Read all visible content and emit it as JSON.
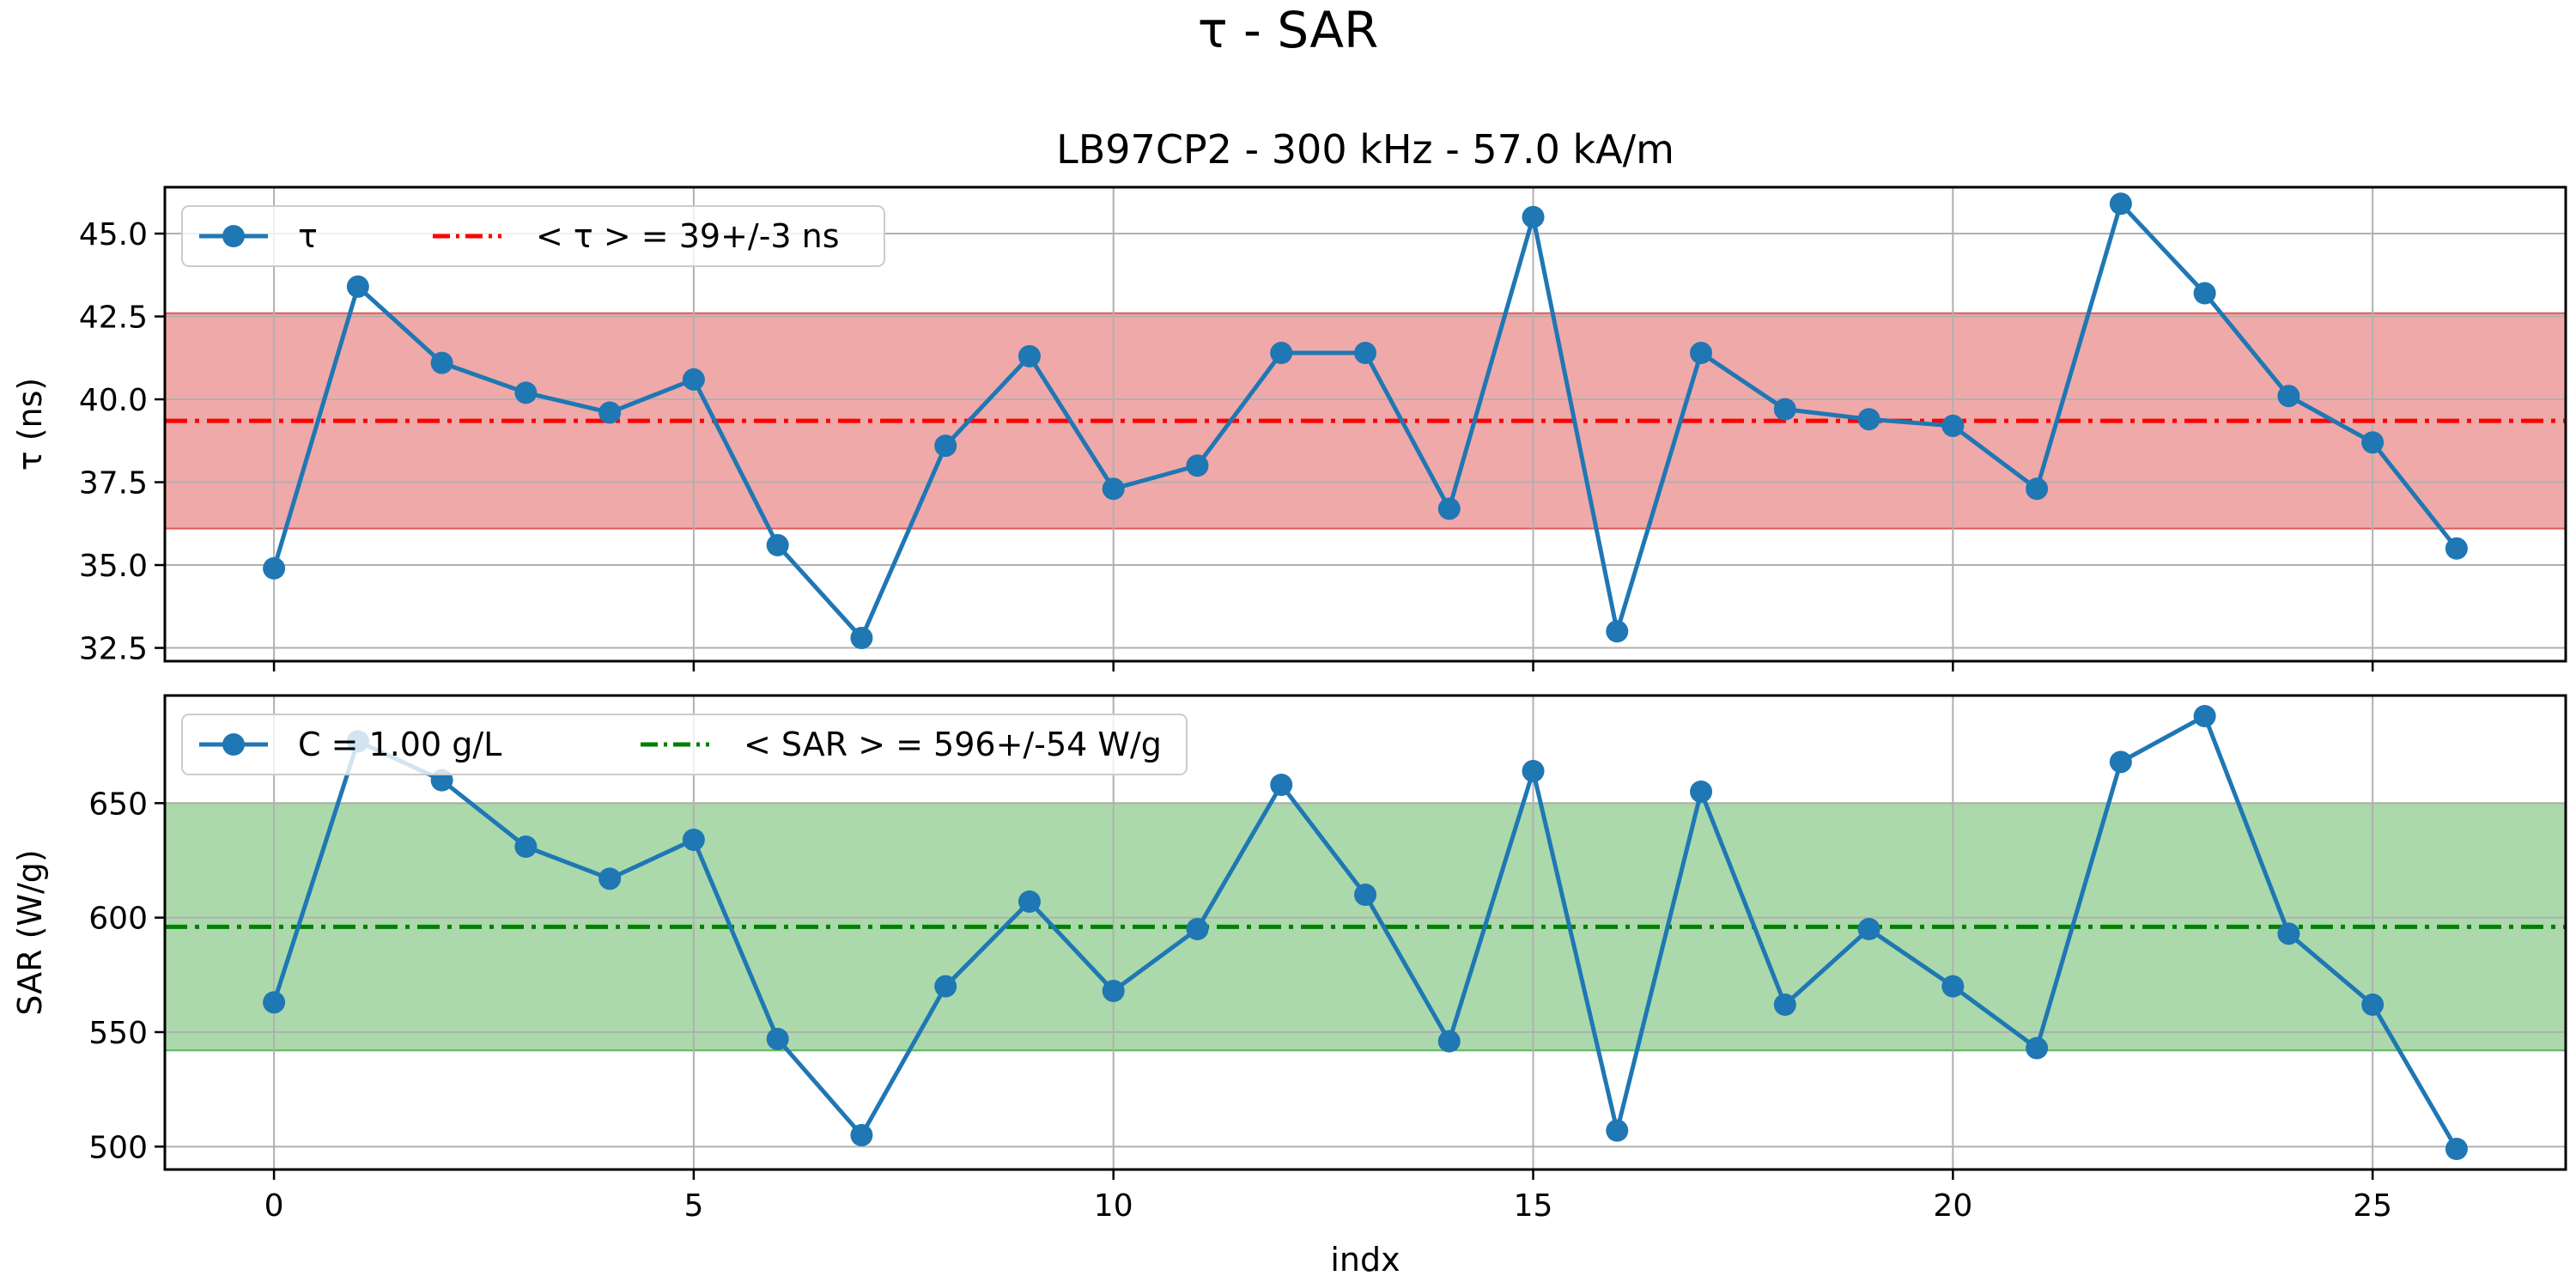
{
  "figure": {
    "suptitle": "τ - SAR"
  },
  "chart_data": [
    {
      "type": "line",
      "title": "LB97CP2 - 300 kHz - 57.0 kA/m",
      "xlabel": "",
      "ylabel": "τ (ns)",
      "xlim": [
        -1.3,
        27.3
      ],
      "ylim": [
        32.1,
        46.4
      ],
      "xticks": [
        0,
        5,
        10,
        15,
        20,
        25
      ],
      "yticks": [
        32.5,
        35.0,
        37.5,
        40.0,
        42.5,
        45.0
      ],
      "ytick_labels": [
        "32.5",
        "35.0",
        "37.5",
        "40.0",
        "42.5",
        "45.0"
      ],
      "grid": true,
      "legend_position": "top-left",
      "series": [
        {
          "name": "τ",
          "color": "#1f77b4",
          "marker": "circle",
          "x": [
            0,
            1,
            2,
            3,
            4,
            5,
            6,
            7,
            8,
            9,
            10,
            11,
            12,
            13,
            14,
            15,
            16,
            17,
            18,
            19,
            20,
            21,
            22,
            23,
            24,
            25,
            26
          ],
          "values": [
            34.9,
            43.4,
            41.1,
            40.2,
            39.6,
            40.6,
            35.6,
            32.8,
            38.6,
            41.3,
            37.3,
            38.0,
            41.4,
            41.4,
            36.7,
            45.5,
            33.0,
            41.4,
            39.7,
            39.4,
            39.2,
            37.3,
            45.9,
            43.2,
            40.1,
            38.7,
            35.5
          ]
        }
      ],
      "mean_line": {
        "label": "$<\\tau>$ = 39+/-3 ns",
        "label_plain": "< τ >  = 39+/-3 ns",
        "value": 39.35,
        "color": "#ff0000",
        "style": "dashdot"
      },
      "band": {
        "low": 36.1,
        "high": 42.6,
        "color": "#d62728",
        "alpha": 0.4
      }
    },
    {
      "type": "line",
      "title": "",
      "xlabel": "indx",
      "ylabel": "SAR (W/g)",
      "xlim": [
        -1.3,
        27.3
      ],
      "ylim": [
        490,
        697
      ],
      "xticks": [
        0,
        5,
        10,
        15,
        20,
        25
      ],
      "xtick_labels": [
        "0",
        "5",
        "10",
        "15",
        "20",
        "25"
      ],
      "yticks": [
        500,
        550,
        600,
        650
      ],
      "ytick_labels": [
        "500",
        "550",
        "600",
        "650"
      ],
      "grid": true,
      "legend_position": "top-left",
      "series": [
        {
          "name": "C = 1.00 g/L",
          "color": "#1f77b4",
          "marker": "circle",
          "x": [
            0,
            1,
            2,
            3,
            4,
            5,
            6,
            7,
            8,
            9,
            10,
            11,
            12,
            13,
            14,
            15,
            16,
            17,
            18,
            19,
            20,
            21,
            22,
            23,
            24,
            25,
            26
          ],
          "values": [
            563,
            677,
            660,
            631,
            617,
            634,
            547,
            505,
            570,
            607,
            568,
            595,
            658,
            610,
            546,
            664,
            507,
            655,
            562,
            595,
            570,
            543,
            668,
            688,
            593,
            562,
            499
          ]
        }
      ],
      "mean_line": {
        "label_plain": "< SAR >  = 596+/-54 W/g",
        "value": 596,
        "color": "#008000",
        "style": "dashdot"
      },
      "band": {
        "low": 542,
        "high": 650,
        "color": "#2ca02c",
        "alpha": 0.4
      }
    }
  ]
}
